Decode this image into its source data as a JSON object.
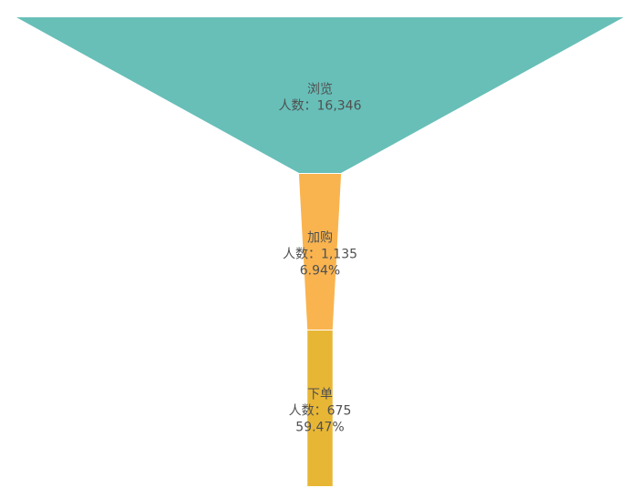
{
  "chart_data": {
    "type": "funnel",
    "title": "",
    "value_prefix": "人数：",
    "stages": [
      {
        "name": "浏览",
        "value": 16346,
        "value_text": "16,346",
        "conversion": null,
        "color": "#67BFB8"
      },
      {
        "name": "加购",
        "value": 1135,
        "value_text": "1,135",
        "conversion": "6.94%",
        "color": "#F9B44F"
      },
      {
        "name": "下单",
        "value": 675,
        "value_text": "675",
        "conversion": "59.47%",
        "color": "#E8B635"
      }
    ]
  }
}
